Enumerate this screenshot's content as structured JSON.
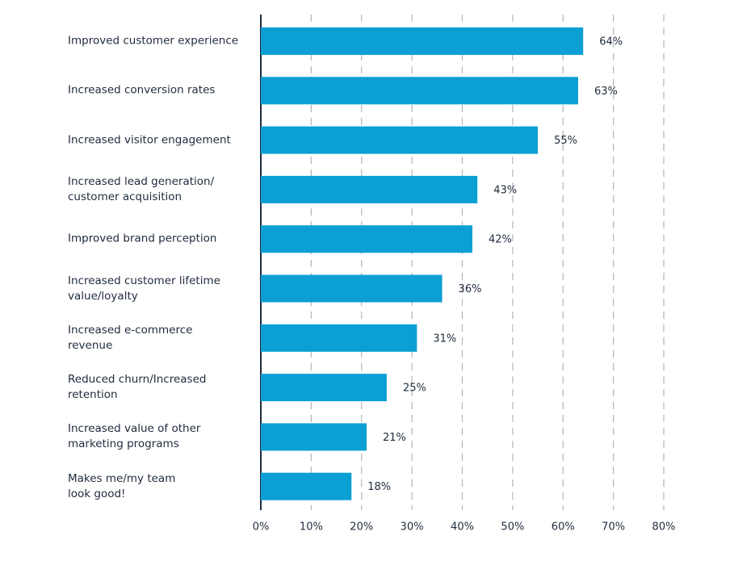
{
  "chart_data": {
    "type": "bar",
    "orientation": "horizontal",
    "categories": [
      "Improved customer experience",
      "Increased conversion rates",
      "Increased visitor engagement",
      "Increased lead generation/\ncustomer acquisition",
      "Improved brand perception",
      "Increased customer lifetime\nvalue/loyalty",
      "Increased e-commerce\nrevenue",
      "Reduced churn/Increased\nretention",
      "Increased value of other\nmarketing programs",
      "Makes me/my team\nlook good!"
    ],
    "values": [
      64,
      63,
      55,
      43,
      42,
      36,
      31,
      25,
      21,
      18
    ],
    "value_labels": [
      "64%",
      "63%",
      "55%",
      "43%",
      "42%",
      "36%",
      "31%",
      "25%",
      "21%",
      "18%"
    ],
    "color": "#0b9fd4",
    "xlim": [
      0,
      80
    ],
    "xticks": [
      {
        "value": 0,
        "label": "0%"
      },
      {
        "value": 10,
        "label": "10%"
      },
      {
        "value": 20,
        "label": "20%"
      },
      {
        "value": 30,
        "label": "30%"
      },
      {
        "value": 40,
        "label": "40%"
      },
      {
        "value": 50,
        "label": "50%"
      },
      {
        "value": 60,
        "label": "60%"
      },
      {
        "value": 70,
        "label": "70%"
      },
      {
        "value": 80,
        "label": "80%"
      }
    ],
    "grid": true
  }
}
